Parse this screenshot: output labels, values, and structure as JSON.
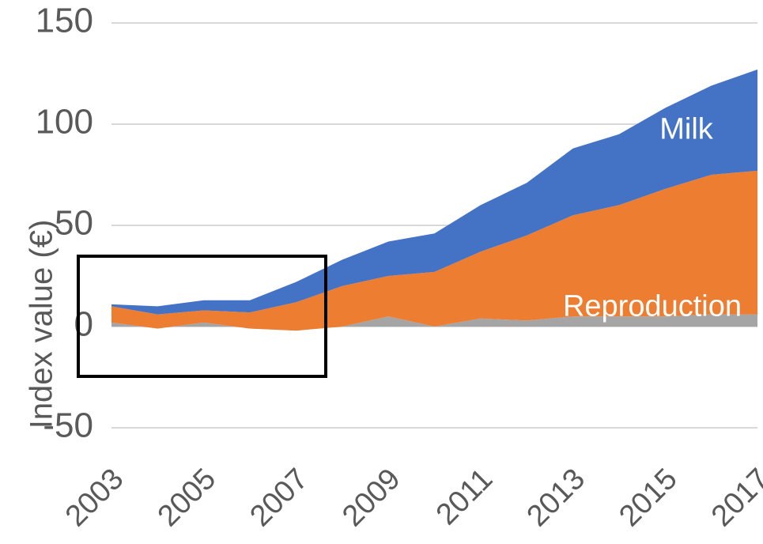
{
  "chart_data": {
    "type": "stacked-area",
    "y_label": "Index value (€)",
    "x": [
      2003,
      2004,
      2005,
      2006,
      2007,
      2008,
      2009,
      2010,
      2011,
      2012,
      2013,
      2014,
      2015,
      2016,
      2017
    ],
    "xlim": [
      2003,
      2017
    ],
    "xticks": [
      2003,
      2005,
      2007,
      2009,
      2011,
      2013,
      2015,
      2017
    ],
    "ylim": [
      -50,
      150
    ],
    "yticks": [
      -50,
      0,
      50,
      100,
      150
    ],
    "grid": true,
    "series": [
      {
        "color": "#a5a5a5",
        "values": [
          2,
          -1,
          2,
          -1,
          -2,
          0,
          5,
          0,
          4,
          3,
          5,
          5,
          5,
          6,
          6
        ]
      },
      {
        "name": "Reproduction",
        "color": "#ed7d31",
        "values": [
          8,
          7,
          6,
          8,
          14,
          20,
          20,
          27,
          33,
          42,
          50,
          55,
          63,
          69,
          71
        ]
      },
      {
        "name": "Milk",
        "color": "#4472c4",
        "values": [
          1,
          4,
          5,
          6,
          10,
          13,
          17,
          19,
          23,
          26,
          33,
          35,
          40,
          44,
          50
        ]
      }
    ]
  }
}
